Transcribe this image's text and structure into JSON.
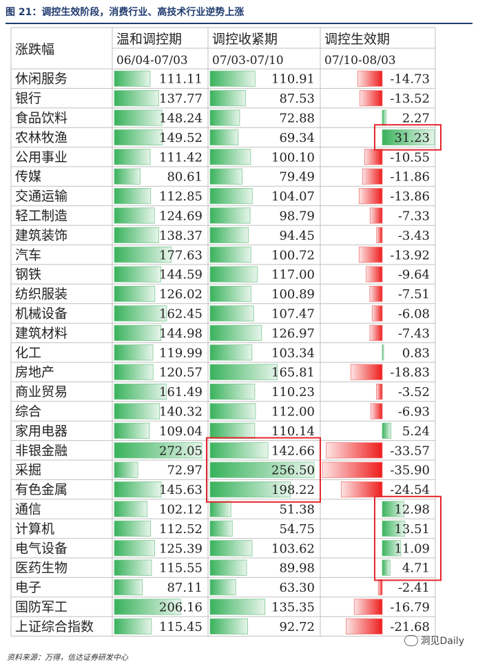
{
  "title": "图 21：调控生效阶段，消费行业、高技术行业逆势上涨",
  "footer": "资料来源：万得，信达证券研发中心",
  "watermark": "洞见Daily",
  "colors": {
    "pos": "#38b25b",
    "neg": "#ee1c1c",
    "grid": "#bfbfbf",
    "highlight": "#e3262b"
  },
  "chart_data": {
    "type": "table",
    "row_header": "涨跌幅",
    "columns": [
      {
        "name": "温和调控期",
        "period": "06/04-07/03"
      },
      {
        "name": "调控收紧期",
        "period": "07/03-07/10"
      },
      {
        "name": "调控生效期",
        "period": "07/10-08/03"
      }
    ],
    "rows": [
      {
        "label": "休闲服务",
        "values": [
          "111.11",
          "110.91",
          "-14.73"
        ]
      },
      {
        "label": "银行",
        "values": [
          "137.77",
          "87.53",
          "-13.52"
        ]
      },
      {
        "label": "食品饮料",
        "values": [
          "148.24",
          "72.88",
          "2.27"
        ]
      },
      {
        "label": "农林牧渔",
        "values": [
          "149.52",
          "69.34",
          "31.23"
        ]
      },
      {
        "label": "公用事业",
        "values": [
          "111.42",
          "100.10",
          "-10.55"
        ]
      },
      {
        "label": "传媒",
        "values": [
          "80.61",
          "79.49",
          "-11.86"
        ]
      },
      {
        "label": "交通运输",
        "values": [
          "112.85",
          "104.07",
          "-13.86"
        ]
      },
      {
        "label": "轻工制造",
        "values": [
          "124.69",
          "98.79",
          "-7.33"
        ]
      },
      {
        "label": "建筑装饰",
        "values": [
          "138.37",
          "94.45",
          "-3.43"
        ]
      },
      {
        "label": "汽车",
        "values": [
          "177.63",
          "100.72",
          "-13.92"
        ]
      },
      {
        "label": "钢铁",
        "values": [
          "144.59",
          "117.00",
          "-9.64"
        ]
      },
      {
        "label": "纺织服装",
        "values": [
          "126.02",
          "100.89",
          "-7.51"
        ]
      },
      {
        "label": "机械设备",
        "values": [
          "162.45",
          "107.47",
          "-6.08"
        ]
      },
      {
        "label": "建筑材料",
        "values": [
          "144.98",
          "126.97",
          "-7.43"
        ]
      },
      {
        "label": "化工",
        "values": [
          "119.99",
          "103.34",
          "0.83"
        ]
      },
      {
        "label": "房地产",
        "values": [
          "120.57",
          "165.81",
          "-18.83"
        ]
      },
      {
        "label": "商业贸易",
        "values": [
          "161.49",
          "110.23",
          "-3.52"
        ]
      },
      {
        "label": "综合",
        "values": [
          "140.32",
          "112.00",
          "-6.93"
        ]
      },
      {
        "label": "家用电器",
        "values": [
          "109.04",
          "110.14",
          "5.24"
        ]
      },
      {
        "label": "非银金融",
        "values": [
          "272.05",
          "142.66",
          "-33.57"
        ]
      },
      {
        "label": "采掘",
        "values": [
          "72.97",
          "256.50",
          "-35.90"
        ]
      },
      {
        "label": "有色金属",
        "values": [
          "145.63",
          "198.22",
          "-24.54"
        ]
      },
      {
        "label": "通信",
        "values": [
          "102.12",
          "51.38",
          "12.98"
        ]
      },
      {
        "label": "计算机",
        "values": [
          "112.52",
          "54.75",
          "13.51"
        ]
      },
      {
        "label": "电气设备",
        "values": [
          "125.39",
          "103.62",
          "11.09"
        ]
      },
      {
        "label": "医药生物",
        "values": [
          "115.55",
          "89.98",
          "4.71"
        ]
      },
      {
        "label": "电子",
        "values": [
          "87.11",
          "63.30",
          "-2.41"
        ]
      },
      {
        "label": "国防军工",
        "values": [
          "206.16",
          "135.35",
          "-16.79"
        ]
      },
      {
        "label": "上证综合指数",
        "values": [
          "115.45",
          "92.72",
          "-21.68"
        ]
      }
    ],
    "highlights": [
      {
        "column": 2,
        "rows": [
          "农林牧渔"
        ]
      },
      {
        "column": 1,
        "rows": [
          "非银金融",
          "采掘",
          "有色金属"
        ]
      },
      {
        "column": 2,
        "rows": [
          "通信",
          "计算机",
          "电气设备",
          "医药生物"
        ]
      }
    ]
  }
}
